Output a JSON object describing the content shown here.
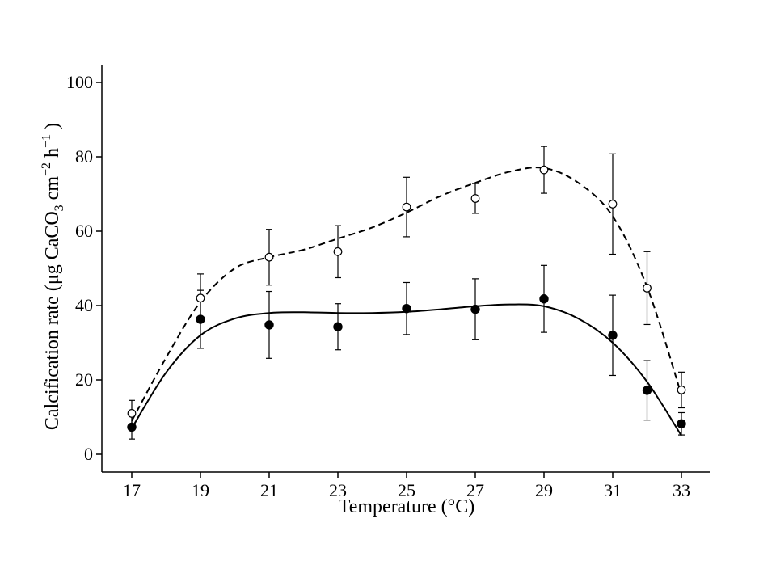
{
  "chart_data": {
    "type": "scatter",
    "xlabel": "Temperature (°C)",
    "ylabel_parts": {
      "prefix": "Calcification rate (μg  CaCO",
      "sub": "3",
      "unit1": "  cm",
      "sup1": "−2",
      "unit2": "  h",
      "sup2": "−1",
      "suffix": " )"
    },
    "xticks": [
      17,
      19,
      21,
      23,
      25,
      27,
      29,
      31,
      33
    ],
    "yticks": [
      0,
      20,
      40,
      60,
      80,
      100
    ],
    "xlim": [
      16.2,
      33.8
    ],
    "ylim": [
      -5,
      105
    ],
    "grid": false,
    "legend": "none",
    "series": [
      {
        "marker": "open-circle",
        "line": "dashed",
        "points": [
          {
            "x": 17,
            "y": 11.0,
            "err": 3.5
          },
          {
            "x": 19,
            "y": 42.0,
            "err": 6.5
          },
          {
            "x": 21,
            "y": 53.0,
            "err": 7.5
          },
          {
            "x": 23,
            "y": 54.5,
            "err": 7.0
          },
          {
            "x": 25,
            "y": 66.5,
            "err": 8.0
          },
          {
            "x": 27,
            "y": 68.8,
            "err": 4.0
          },
          {
            "x": 29,
            "y": 76.5,
            "err": 6.3
          },
          {
            "x": 31,
            "y": 67.3,
            "err": 13.5
          },
          {
            "x": 32,
            "y": 44.7,
            "err": 9.8
          },
          {
            "x": 33,
            "y": 17.3,
            "err": 4.8
          }
        ],
        "curve": [
          [
            17,
            9
          ],
          [
            18,
            26
          ],
          [
            19,
            41
          ],
          [
            20,
            50
          ],
          [
            21,
            53
          ],
          [
            22,
            55
          ],
          [
            23,
            58
          ],
          [
            24,
            61
          ],
          [
            25,
            65
          ],
          [
            26,
            69.5
          ],
          [
            27,
            73
          ],
          [
            28,
            76
          ],
          [
            29,
            77
          ],
          [
            30,
            73
          ],
          [
            31,
            64
          ],
          [
            32,
            45
          ],
          [
            33,
            16
          ]
        ]
      },
      {
        "marker": "filled-circle",
        "line": "solid",
        "points": [
          {
            "x": 17,
            "y": 7.3,
            "err": 3.2
          },
          {
            "x": 19,
            "y": 36.3,
            "err": 7.8
          },
          {
            "x": 21,
            "y": 34.8,
            "err": 9.0
          },
          {
            "x": 23,
            "y": 34.3,
            "err": 6.2
          },
          {
            "x": 25,
            "y": 39.2,
            "err": 7.0
          },
          {
            "x": 27,
            "y": 39.0,
            "err": 8.2
          },
          {
            "x": 29,
            "y": 41.8,
            "err": 9.0
          },
          {
            "x": 31,
            "y": 32.0,
            "err": 10.8
          },
          {
            "x": 32,
            "y": 17.2,
            "err": 8.0
          },
          {
            "x": 33,
            "y": 8.2,
            "err": 3.0
          }
        ],
        "curve": [
          [
            17,
            7
          ],
          [
            18,
            22
          ],
          [
            19,
            32
          ],
          [
            20,
            36.5
          ],
          [
            21,
            38
          ],
          [
            22,
            38.2
          ],
          [
            23,
            38
          ],
          [
            24,
            38
          ],
          [
            25,
            38.3
          ],
          [
            26,
            39
          ],
          [
            27,
            39.8
          ],
          [
            28,
            40.3
          ],
          [
            29,
            39.8
          ],
          [
            30,
            36.5
          ],
          [
            31,
            30
          ],
          [
            32,
            19.5
          ],
          [
            33,
            5
          ]
        ]
      }
    ]
  }
}
